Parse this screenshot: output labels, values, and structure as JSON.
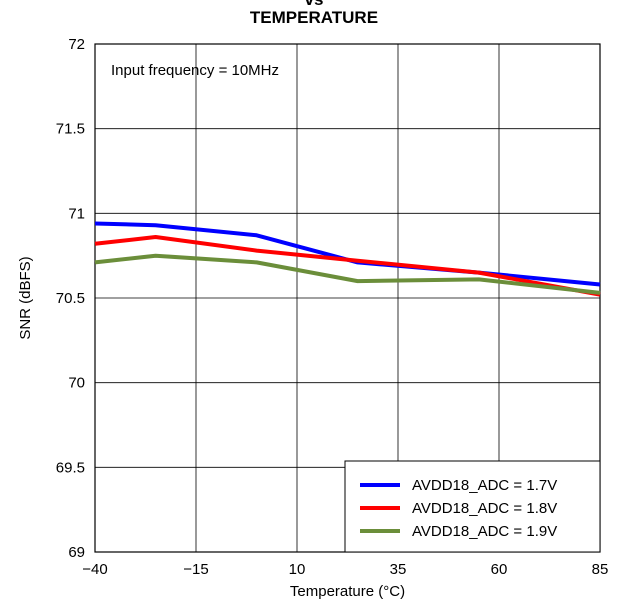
{
  "chart_data": {
    "type": "line",
    "title_lines": [
      "vs",
      "TEMPERATURE"
    ],
    "xlabel": "Temperature (°C)",
    "ylabel": "SNR (dBFS)",
    "annotation": "Input frequency = 10MHz",
    "xlim": [
      -40,
      85
    ],
    "ylim": [
      69,
      72
    ],
    "x_ticks": [
      -40,
      -15,
      10,
      35,
      60,
      85
    ],
    "x_tick_labels": [
      "−40",
      "−15",
      "10",
      "35",
      "60",
      "85"
    ],
    "y_ticks": [
      69,
      69.5,
      70,
      70.5,
      71,
      71.5,
      72
    ],
    "y_tick_labels": [
      "69",
      "69.5",
      "70",
      "70.5",
      "71",
      "71.5",
      "72"
    ],
    "grid": true,
    "legend_position": "bottom-right",
    "series": [
      {
        "name": "AVDD18_ADC = 1.7V",
        "color": "#0000ff",
        "x": [
          -40,
          -25,
          0,
          25,
          55,
          85
        ],
        "y": [
          70.94,
          70.93,
          70.87,
          70.71,
          70.65,
          70.58
        ]
      },
      {
        "name": "AVDD18_ADC = 1.8V",
        "color": "#ff0000",
        "x": [
          -40,
          -25,
          0,
          25,
          55,
          85
        ],
        "y": [
          70.82,
          70.86,
          70.78,
          70.72,
          70.65,
          70.52
        ]
      },
      {
        "name": "AVDD18_ADC = 1.9V",
        "color": "#6b8e3a",
        "x": [
          -40,
          -25,
          0,
          25,
          55,
          85
        ],
        "y": [
          70.71,
          70.75,
          70.71,
          70.6,
          70.61,
          70.53
        ]
      }
    ]
  }
}
